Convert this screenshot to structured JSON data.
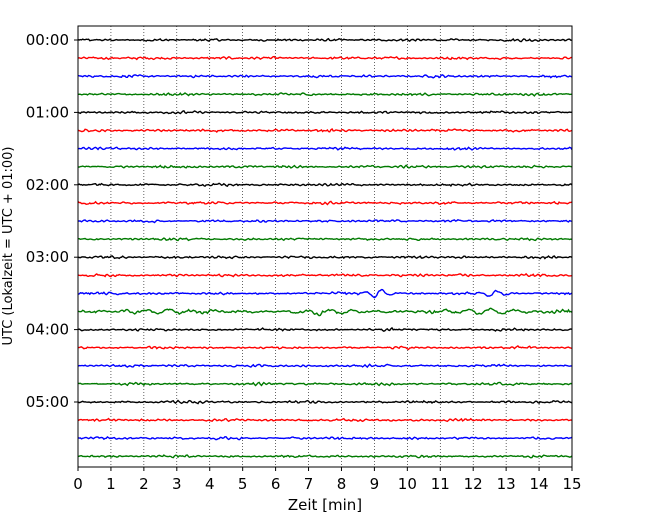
{
  "chart_data": {
    "type": "line",
    "title": "",
    "xlabel": "Zeit  [min]",
    "ylabel": "UTC (Lokalzeit = UTC + 01:00)",
    "xlim": [
      0,
      15
    ],
    "x_ticks": [
      "0",
      "1",
      "2",
      "3",
      "4",
      "5",
      "6",
      "7",
      "8",
      "9",
      "10",
      "11",
      "12",
      "13",
      "14",
      "15"
    ],
    "y_ticks": [
      "00:00",
      "01:00",
      "02:00",
      "03:00",
      "04:00",
      "05:00"
    ],
    "grid_x": true,
    "trace_colors": [
      "#000000",
      "#ff0000",
      "#0000ff",
      "#007a00"
    ],
    "trace_minutes": 15,
    "traces": [
      {
        "label": "00:00"
      },
      {
        "label": "00:15"
      },
      {
        "label": "00:30"
      },
      {
        "label": "00:45"
      },
      {
        "label": "01:00"
      },
      {
        "label": "01:15"
      },
      {
        "label": "01:30"
      },
      {
        "label": "01:45"
      },
      {
        "label": "02:00"
      },
      {
        "label": "02:15"
      },
      {
        "label": "02:30"
      },
      {
        "label": "02:45"
      },
      {
        "label": "03:00"
      },
      {
        "label": "03:15"
      },
      {
        "label": "03:30",
        "events": [
          {
            "t": 9.1,
            "amp": 1.0
          },
          {
            "t": 12.6,
            "amp": 0.8
          }
        ]
      },
      {
        "label": "03:45",
        "noisy": true
      },
      {
        "label": "04:00"
      },
      {
        "label": "04:15"
      },
      {
        "label": "04:30"
      },
      {
        "label": "04:45"
      },
      {
        "label": "05:00"
      },
      {
        "label": "05:15"
      },
      {
        "label": "05:30"
      },
      {
        "label": "05:45"
      }
    ]
  }
}
